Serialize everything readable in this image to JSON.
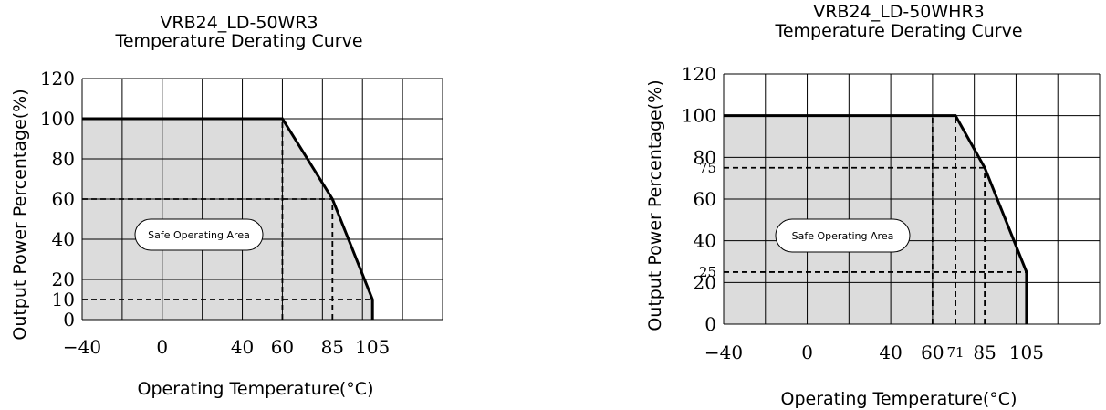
{
  "chart_data": [
    {
      "type": "area",
      "title": "VRB24_LD-50WR3",
      "subtitle": "Temperature Derating Curve",
      "xlabel": "Operating Temperature(°C)",
      "ylabel": "Output Power Percentage(%)",
      "x_ticks": [
        "-40",
        "0",
        "40",
        "60",
        "85",
        "105"
      ],
      "y_ticks": [
        "0",
        "10",
        "20",
        "40",
        "60",
        "80",
        "100",
        "120"
      ],
      "xlim": [
        -40,
        140
      ],
      "ylim": [
        0,
        120
      ],
      "grid": true,
      "series": [
        {
          "x": [
            -40,
            60,
            85,
            105,
            105
          ],
          "y": [
            100,
            100,
            60,
            10,
            0
          ]
        }
      ],
      "reference_lines": [
        {
          "from": [
            -40,
            60
          ],
          "to": [
            85,
            60
          ]
        },
        {
          "from": [
            85,
            0
          ],
          "to": [
            85,
            60
          ]
        },
        {
          "from": [
            60,
            0
          ],
          "to": [
            60,
            100
          ]
        },
        {
          "from": [
            -40,
            10
          ],
          "to": [
            105,
            10
          ]
        }
      ],
      "annotation": "Safe Operating Area"
    },
    {
      "type": "area",
      "title": "VRB24_LD-50WHR3",
      "subtitle": "Temperature Derating Curve",
      "xlabel": "Operating Temperature(°C)",
      "ylabel": "Output Power Percentage(%)",
      "x_ticks": [
        "-40",
        "0",
        "40",
        "60",
        "71",
        "85",
        "105"
      ],
      "y_ticks": [
        "0",
        "20",
        "25",
        "40",
        "60",
        "75",
        "80",
        "100",
        "120"
      ],
      "small_ticks": [
        "71",
        "75",
        "25"
      ],
      "xlim": [
        -40,
        140
      ],
      "ylim": [
        0,
        120
      ],
      "grid": true,
      "series": [
        {
          "x": [
            -40,
            71,
            85,
            105,
            105
          ],
          "y": [
            100,
            100,
            75,
            25,
            0
          ]
        }
      ],
      "reference_lines": [
        {
          "from": [
            60,
            0
          ],
          "to": [
            60,
            100
          ]
        },
        {
          "from": [
            71,
            0
          ],
          "to": [
            71,
            100
          ]
        },
        {
          "from": [
            -40,
            75
          ],
          "to": [
            85,
            75
          ]
        },
        {
          "from": [
            85,
            0
          ],
          "to": [
            85,
            75
          ]
        },
        {
          "from": [
            -40,
            25
          ],
          "to": [
            105,
            25
          ]
        }
      ],
      "annotation": "Safe Operating Area"
    }
  ]
}
